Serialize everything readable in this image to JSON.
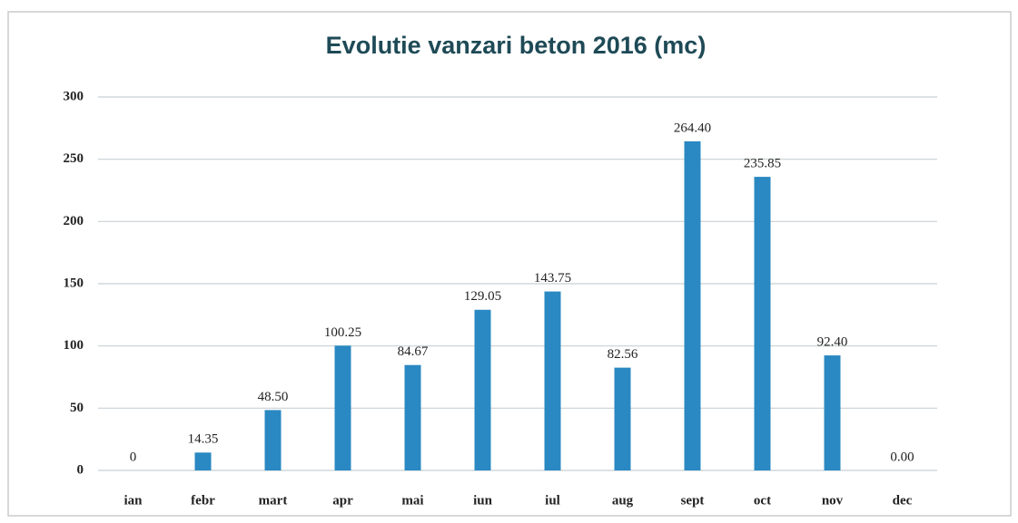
{
  "chart_data": {
    "type": "bar",
    "title": "Evolutie vanzari beton 2016 (mc)",
    "categories": [
      "ian",
      "febr",
      "mart",
      "apr",
      "mai",
      "iun",
      "iul",
      "aug",
      "sept",
      "oct",
      "nov",
      "dec"
    ],
    "values": [
      0,
      14.35,
      48.5,
      100.25,
      84.67,
      129.05,
      143.75,
      82.56,
      264.4,
      235.85,
      92.4,
      0
    ],
    "value_labels": [
      "0",
      "14.35",
      "48.50",
      "100.25",
      "84.67",
      "129.05",
      "143.75",
      "82.56",
      "264.40",
      "235.85",
      "92.40",
      "0.00"
    ],
    "color": "#2a88c2",
    "ylim": [
      0,
      300
    ],
    "yticks": [
      0,
      50,
      100,
      150,
      200,
      250,
      300
    ],
    "grid": true
  }
}
